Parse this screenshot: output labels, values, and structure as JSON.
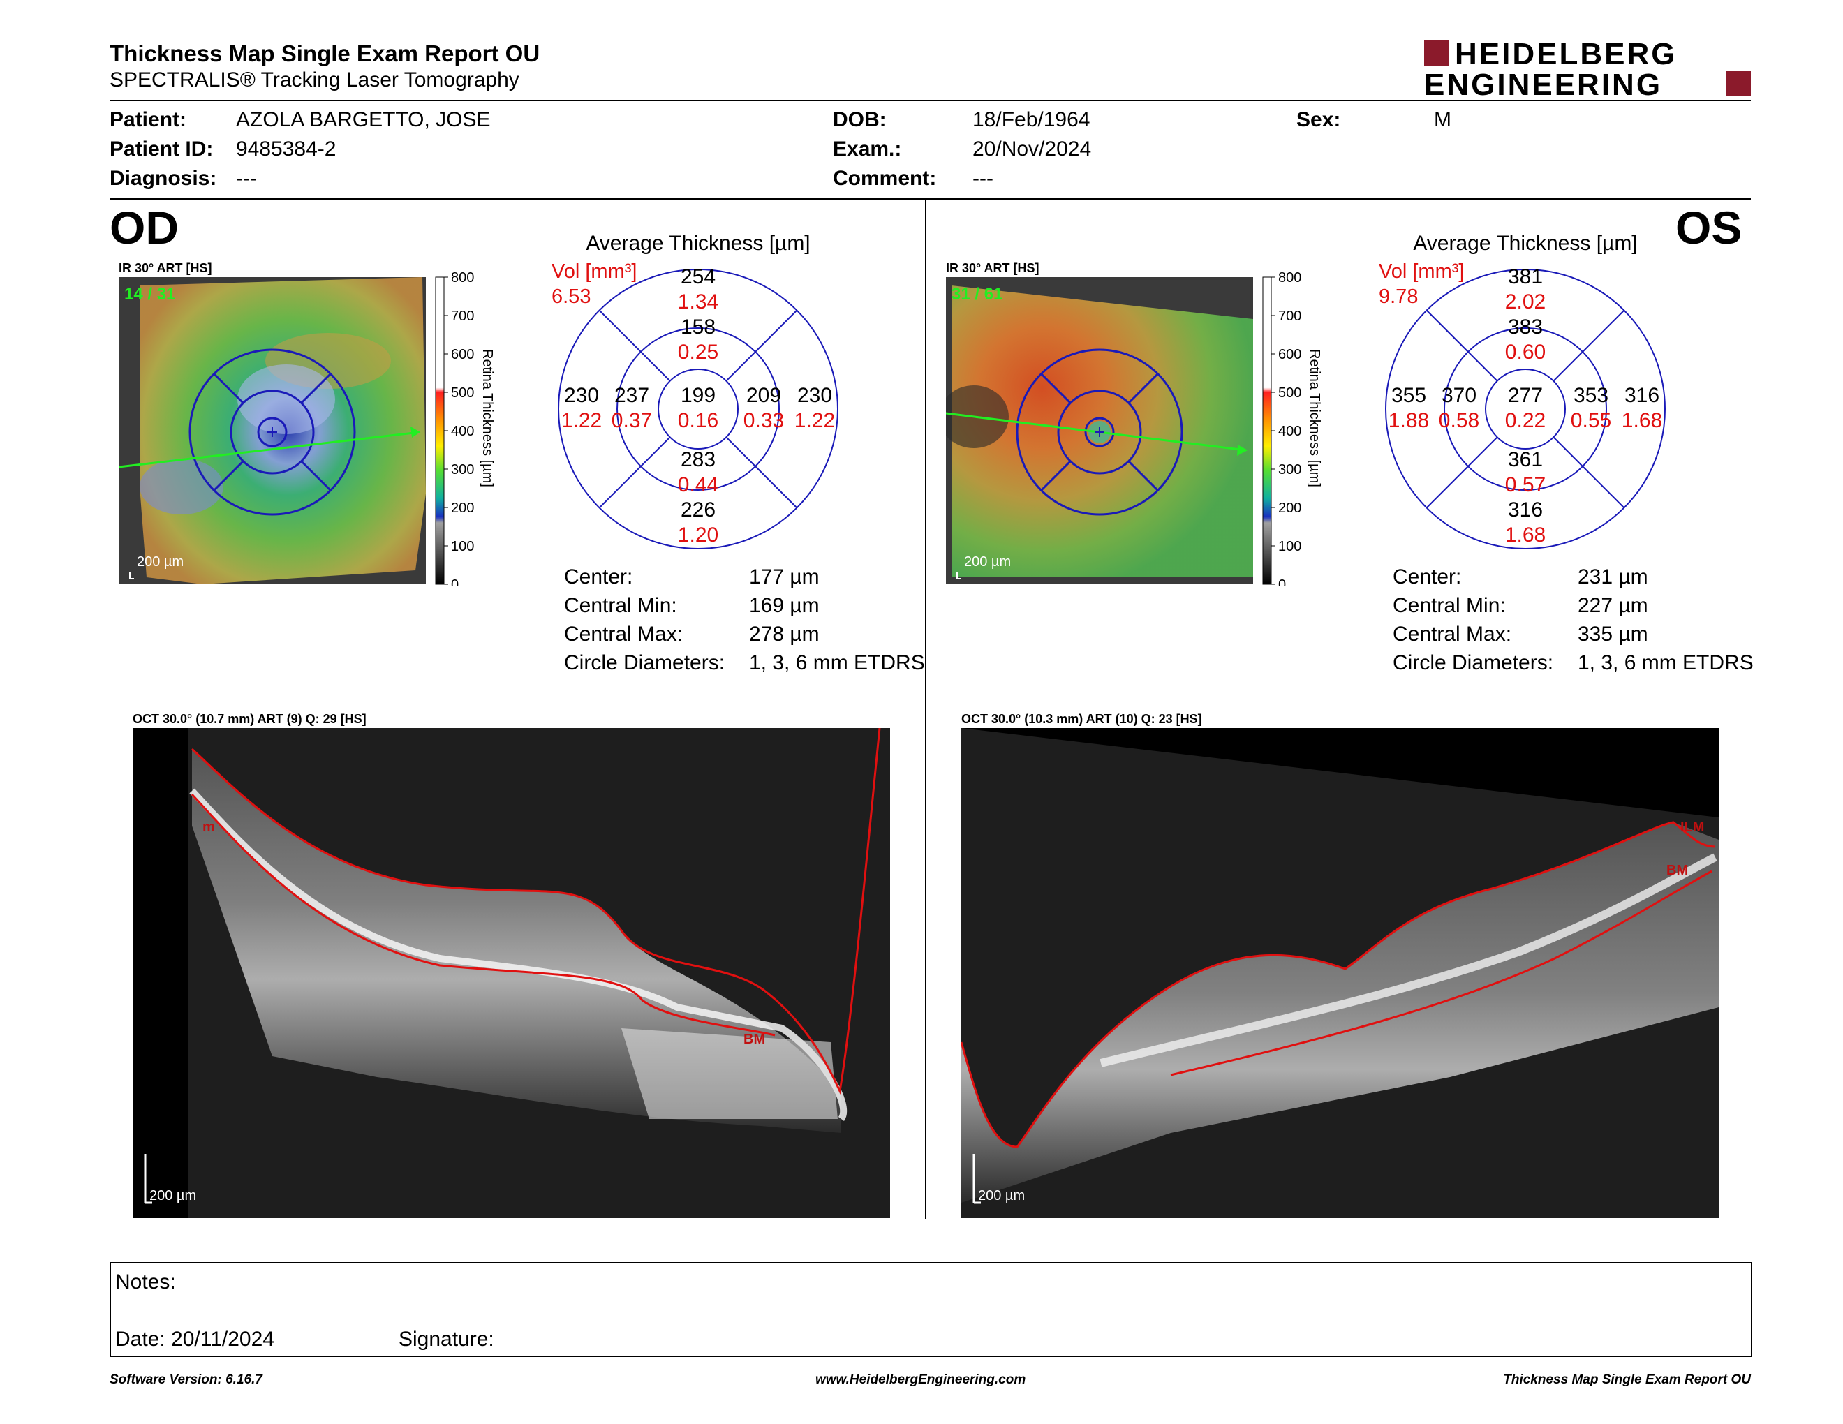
{
  "header": {
    "title": "Thickness Map Single Exam Report OU",
    "subtitle": "SPECTRALIS® Tracking Laser Tomography",
    "logo_line1": "HEIDELBERG",
    "logo_line2": "ENGINEERING",
    "brand_color": "#8b1a2b"
  },
  "patient": {
    "patient_label": "Patient:",
    "patient_value": "AZOLA BARGETTO, JOSE",
    "id_label": "Patient ID:",
    "id_value": "9485384-2",
    "diagnosis_label": "Diagnosis:",
    "diagnosis_value": "---",
    "dob_label": "DOB:",
    "dob_value": "18/Feb/1964",
    "exam_label": "Exam.:",
    "exam_value": "20/Nov/2024",
    "comment_label": "Comment:",
    "comment_value": "---",
    "sex_label": "Sex:",
    "sex_value": "M"
  },
  "scale": {
    "ticks": [
      "800",
      "700",
      "600",
      "500",
      "400",
      "300",
      "200",
      "100",
      "0"
    ],
    "label": "Retina Thickness [µm]"
  },
  "od": {
    "eye_label": "OD",
    "ir_caption": "IR 30° ART [HS]",
    "frames": "14 / 31",
    "scalebar": "200 µm",
    "avg_title": "Average Thickness [µm]",
    "vol_label": "Vol [mm³]",
    "vol_value": "6.53",
    "etdrs": {
      "center": {
        "t": "199",
        "v": "0.16"
      },
      "inner_sup": {
        "t": "158",
        "v": "0.25"
      },
      "inner_inf": {
        "t": "283",
        "v": "0.44"
      },
      "inner_left": {
        "t": "237",
        "v": "0.37"
      },
      "inner_right": {
        "t": "209",
        "v": "0.33"
      },
      "outer_sup": {
        "t": "254",
        "v": "1.34"
      },
      "outer_inf": {
        "t": "226",
        "v": "1.20"
      },
      "outer_left": {
        "t": "230",
        "v": "1.22"
      },
      "outer_right": {
        "t": "230",
        "v": "1.22"
      }
    },
    "stats": [
      {
        "label": "Center:",
        "value": "177 µm"
      },
      {
        "label": "Central Min:",
        "value": "169 µm"
      },
      {
        "label": "Central Max:",
        "value": "278 µm"
      },
      {
        "label": "Circle Diameters:",
        "value": "1, 3, 6 mm ETDRS"
      }
    ],
    "oct_caption": "OCT 30.0° (10.7 mm) ART (9) Q: 29 [HS]",
    "oct_scalebar": "200 µm",
    "oct_label_top": "m",
    "oct_label_bm": "BM"
  },
  "os": {
    "eye_label": "OS",
    "ir_caption": "IR 30° ART [HS]",
    "frames": "31 / 61",
    "scalebar": "200 µm",
    "avg_title": "Average Thickness [µm]",
    "vol_label": "Vol [mm³]",
    "vol_value": "9.78",
    "etdrs": {
      "center": {
        "t": "277",
        "v": "0.22"
      },
      "inner_sup": {
        "t": "383",
        "v": "0.60"
      },
      "inner_inf": {
        "t": "361",
        "v": "0.57"
      },
      "inner_left": {
        "t": "370",
        "v": "0.58"
      },
      "inner_right": {
        "t": "353",
        "v": "0.55"
      },
      "outer_sup": {
        "t": "381",
        "v": "2.02"
      },
      "outer_inf": {
        "t": "316",
        "v": "1.68"
      },
      "outer_left": {
        "t": "355",
        "v": "1.88"
      },
      "outer_right": {
        "t": "316",
        "v": "1.68"
      }
    },
    "stats": [
      {
        "label": "Center:",
        "value": "231 µm"
      },
      {
        "label": "Central Min:",
        "value": "227 µm"
      },
      {
        "label": "Central Max:",
        "value": "335 µm"
      },
      {
        "label": "Circle Diameters:",
        "value": "1, 3, 6 mm ETDRS"
      }
    ],
    "oct_caption": "OCT 30.0° (10.3 mm) ART (10) Q: 23 [HS]",
    "oct_scalebar": "200 µm",
    "oct_label_top": "ILM",
    "oct_label_bm": "BM"
  },
  "notes": {
    "notes_label": "Notes:",
    "date_label": "Date: 20/11/2024",
    "signature_label": "Signature:"
  },
  "footer": {
    "software": "Software Version: 6.16.7",
    "website": "www.HeidelbergEngineering.com",
    "report": "Thickness Map Single Exam Report OU"
  }
}
